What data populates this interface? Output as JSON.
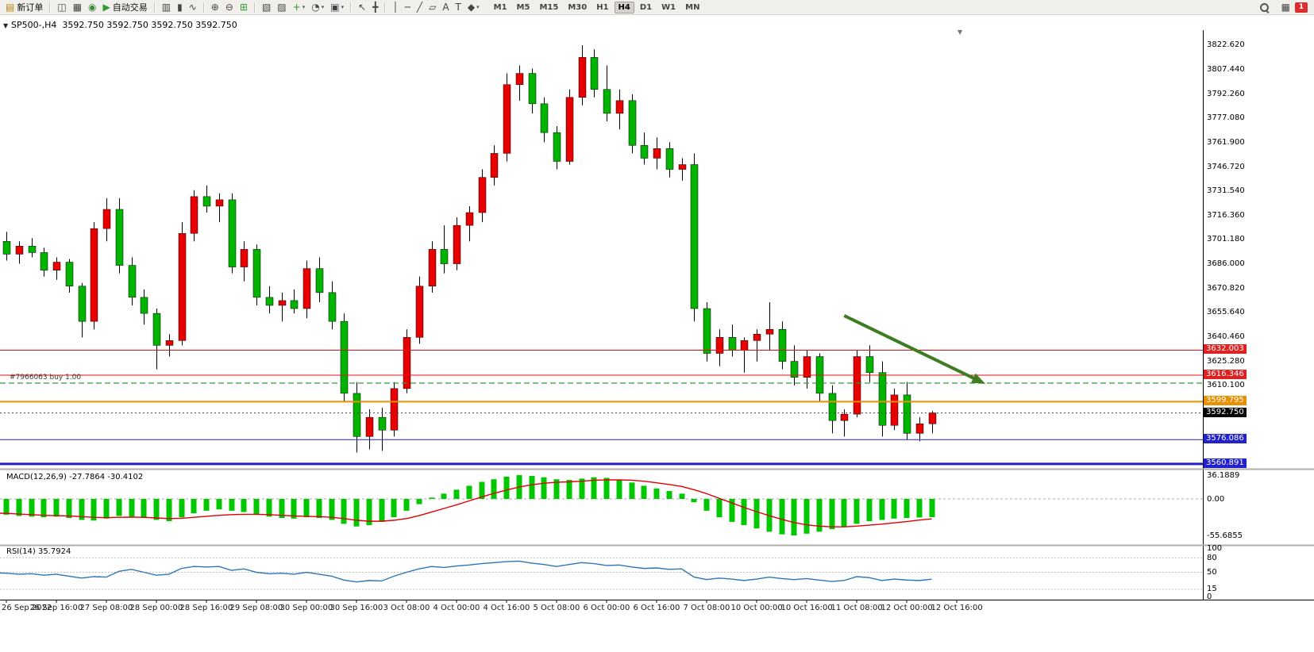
{
  "window": {
    "toolbar_bg": "#f1efec",
    "chart_bg": "#ffffff"
  },
  "icons": {
    "shift_marker": "▼",
    "collapse_toggle": "▼"
  },
  "toolbar": {
    "groups": [
      [
        {
          "name": "new-order-button",
          "glyph": "▤",
          "glyph_color": "#b8860b",
          "label": "新订单"
        }
      ],
      [
        {
          "name": "chart-window-icon",
          "glyph": "◫"
        },
        {
          "name": "profiles-icon",
          "glyph": "▦"
        },
        {
          "name": "refresh-icon",
          "glyph": "◉",
          "glyph_color": "#3a8a3a"
        },
        {
          "name": "auto-trading-button",
          "glyph": "▶",
          "glyph_color": "#2e9e2e",
          "label": "自动交易"
        }
      ],
      [
        {
          "name": "bar-chart-icon",
          "glyph": "▥"
        },
        {
          "name": "candlestick-chart-icon",
          "glyph": "▮"
        },
        {
          "name": "line-chart-icon",
          "glyph": "∿"
        }
      ],
      [
        {
          "name": "zoom-in-icon",
          "glyph": "⊕"
        },
        {
          "name": "zoom-out-icon",
          "glyph": "⊖"
        },
        {
          "name": "tile-windows-icon",
          "glyph": "⊞",
          "glyph_color": "#2e9e2e"
        }
      ],
      [
        {
          "name": "arrange-windows-icon",
          "glyph": "▧"
        },
        {
          "name": "cascade-windows-icon",
          "glyph": "▨"
        },
        {
          "name": "add-indicator-button",
          "glyph": "+",
          "glyph_color": "#2e9e2e",
          "caret": true
        },
        {
          "name": "period-button",
          "glyph": "◔",
          "caret": true
        },
        {
          "name": "template-button",
          "glyph": "▣",
          "caret": true
        }
      ],
      [
        {
          "name": "cursor-icon",
          "glyph": "↖"
        },
        {
          "name": "crosshair-icon",
          "glyph": "╋"
        }
      ],
      [
        {
          "name": "vertical-line-icon",
          "glyph": "│"
        },
        {
          "name": "horizontal-line-icon",
          "glyph": "─"
        },
        {
          "name": "trendline-icon",
          "glyph": "╱"
        },
        {
          "name": "channel-icon",
          "glyph": "▱"
        },
        {
          "name": "text-tool-icon",
          "glyph": "A"
        },
        {
          "name": "text-label-icon",
          "glyph": "T"
        },
        {
          "name": "shapes-button",
          "glyph": "◆",
          "caret": true
        }
      ]
    ],
    "timeframes": [
      "M1",
      "M5",
      "M15",
      "M30",
      "H1",
      "H4",
      "D1",
      "W1",
      "MN"
    ],
    "active_timeframe": "H4",
    "right_icons": [
      {
        "name": "search-icon",
        "type": "magnifier"
      },
      {
        "name": "community-icon",
        "glyph": "▦"
      }
    ],
    "notification_badge": "1"
  },
  "chart_header": {
    "title": "SP500-,H4",
    "ohlc": "3592.750 3592.750 3592.750 3592.750"
  },
  "price_axis": {
    "labels": [
      "3822.620",
      "3807.440",
      "3792.260",
      "3777.080",
      "3761.900",
      "3746.720",
      "3731.540",
      "3716.360",
      "3701.180",
      "3686.000",
      "3670.820",
      "3655.640",
      "3640.460",
      "3625.280",
      "3610.100"
    ]
  },
  "position_line": {
    "label": "#7966063 buy 1.00",
    "price": 3611.4,
    "color": "#2f9e2f"
  },
  "levels": [
    {
      "name": "resistance-1",
      "price": 3632.003,
      "color": "#e01010",
      "style": "solid",
      "width": 1,
      "badge": "3632.003",
      "badge_bg": "#dd2222"
    },
    {
      "name": "resistance-2",
      "price": 3616.346,
      "color": "#e01010",
      "style": "solid",
      "width": 1,
      "badge": "3616.346",
      "badge_bg": "#dd2222"
    },
    {
      "name": "pivot-orange",
      "price": 3599.795,
      "color": "#e89000",
      "style": "solid",
      "width": 2,
      "badge": "3599.795",
      "badge_bg": "#e89000"
    },
    {
      "name": "current-price-line",
      "price": 3592.75,
      "color": "#444444",
      "style": "dotted",
      "width": 1,
      "badge": "3592.750",
      "badge_bg": "#000000"
    },
    {
      "name": "support-blue-1",
      "price": 3576.086,
      "color": "#2020cc",
      "style": "solid",
      "width": 1,
      "badge": "3576.086",
      "badge_bg": "#2222cc"
    },
    {
      "name": "support-blue-2",
      "price": 3560.891,
      "color": "#2020cc",
      "style": "solid",
      "width": 3,
      "badge": "3560.891",
      "badge_bg": "#2222cc"
    }
  ],
  "annotations": {
    "trend_arrow": {
      "from_bar": 69,
      "from_price": 3653.6,
      "to_bar": 80.3,
      "to_price": 3610.9,
      "color": "#3f7d22"
    }
  },
  "chart_data": {
    "type": "candlestick",
    "symbol": "SP500-",
    "timeframe": "H4",
    "up_color": "#e80000",
    "down_color": "#00b400",
    "wick_color": "#000000",
    "ylim": [
      3558.35,
      3832.04
    ],
    "candles": [
      [
        3702,
        3708,
        3694,
        3698
      ],
      [
        3698,
        3703,
        3692,
        3700
      ],
      [
        3700,
        3706,
        3688,
        3692
      ],
      [
        3692,
        3700,
        3686,
        3697
      ],
      [
        3697,
        3702,
        3690,
        3693
      ],
      [
        3693,
        3696,
        3678,
        3682
      ],
      [
        3682,
        3690,
        3676,
        3687
      ],
      [
        3687,
        3689,
        3668,
        3672
      ],
      [
        3672,
        3674,
        3640,
        3650
      ],
      [
        3650,
        3712,
        3645,
        3708
      ],
      [
        3708,
        3727,
        3700,
        3720
      ],
      [
        3720,
        3727,
        3680,
        3685
      ],
      [
        3685,
        3690,
        3660,
        3665
      ],
      [
        3665,
        3670,
        3648,
        3655
      ],
      [
        3655,
        3658,
        3620,
        3635
      ],
      [
        3635,
        3642,
        3628,
        3638
      ],
      [
        3638,
        3712,
        3635,
        3705
      ],
      [
        3705,
        3732,
        3700,
        3728
      ],
      [
        3728,
        3735,
        3718,
        3722
      ],
      [
        3722,
        3730,
        3712,
        3726
      ],
      [
        3726,
        3730,
        3680,
        3684
      ],
      [
        3684,
        3700,
        3675,
        3695
      ],
      [
        3695,
        3698,
        3660,
        3665
      ],
      [
        3665,
        3672,
        3655,
        3660
      ],
      [
        3660,
        3668,
        3650,
        3663
      ],
      [
        3663,
        3670,
        3655,
        3658
      ],
      [
        3658,
        3688,
        3652,
        3683
      ],
      [
        3683,
        3690,
        3662,
        3668
      ],
      [
        3668,
        3675,
        3645,
        3650
      ],
      [
        3650,
        3655,
        3600,
        3605
      ],
      [
        3605,
        3612,
        3568,
        3578
      ],
      [
        3578,
        3595,
        3570,
        3590
      ],
      [
        3590,
        3596,
        3569,
        3582
      ],
      [
        3582,
        3612,
        3578,
        3608
      ],
      [
        3608,
        3645,
        3605,
        3640
      ],
      [
        3640,
        3678,
        3636,
        3672
      ],
      [
        3672,
        3700,
        3668,
        3695
      ],
      [
        3695,
        3710,
        3680,
        3686
      ],
      [
        3686,
        3715,
        3682,
        3710
      ],
      [
        3710,
        3722,
        3700,
        3718
      ],
      [
        3718,
        3745,
        3712,
        3740
      ],
      [
        3740,
        3760,
        3735,
        3755
      ],
      [
        3755,
        3805,
        3750,
        3798
      ],
      [
        3798,
        3810,
        3788,
        3805
      ],
      [
        3805,
        3808,
        3780,
        3786
      ],
      [
        3786,
        3790,
        3762,
        3768
      ],
      [
        3768,
        3772,
        3745,
        3750
      ],
      [
        3750,
        3795,
        3748,
        3790
      ],
      [
        3790,
        3822.6,
        3785,
        3815
      ],
      [
        3815,
        3820,
        3790,
        3795
      ],
      [
        3795,
        3810,
        3775,
        3780
      ],
      [
        3780,
        3795,
        3770,
        3788
      ],
      [
        3788,
        3792,
        3755,
        3760
      ],
      [
        3760,
        3768,
        3748,
        3752
      ],
      [
        3752,
        3765,
        3745,
        3758
      ],
      [
        3758,
        3762,
        3740,
        3745
      ],
      [
        3745,
        3752,
        3738,
        3748
      ],
      [
        3748,
        3755,
        3650,
        3658
      ],
      [
        3658,
        3662,
        3625,
        3630
      ],
      [
        3630,
        3645,
        3622,
        3640
      ],
      [
        3640,
        3648,
        3628,
        3632
      ],
      [
        3632,
        3640,
        3618,
        3638
      ],
      [
        3638,
        3645,
        3625,
        3642
      ],
      [
        3642,
        3662,
        3632,
        3645
      ],
      [
        3645,
        3650,
        3620,
        3625
      ],
      [
        3625,
        3635,
        3610,
        3615
      ],
      [
        3615,
        3632,
        3608,
        3628
      ],
      [
        3628,
        3630,
        3600,
        3605
      ],
      [
        3605,
        3610,
        3580,
        3588
      ],
      [
        3588,
        3595,
        3578,
        3592
      ],
      [
        3592,
        3632,
        3590,
        3628
      ],
      [
        3628,
        3635,
        3612,
        3618
      ],
      [
        3618,
        3625,
        3578,
        3585
      ],
      [
        3585,
        3608,
        3582,
        3604
      ],
      [
        3604,
        3612,
        3576,
        3580
      ],
      [
        3580,
        3590,
        3575,
        3586
      ],
      [
        3586,
        3594,
        3580,
        3592.75
      ]
    ]
  },
  "macd": {
    "label_text": "MACD(12,26,9) -27.7864 -30.4102",
    "name": "MACD(12,26,9)",
    "values": [
      -27.7864,
      -30.4102
    ],
    "axis": [
      "36.1889",
      "0.00",
      "-55.6855"
    ],
    "histogram_color": "#00c800",
    "signal_color": "#e00000",
    "histogram": [
      -22,
      -23,
      -24,
      -26,
      -27,
      -28,
      -27,
      -29,
      -32,
      -33,
      -30,
      -26,
      -27,
      -29,
      -32,
      -34,
      -28,
      -22,
      -18,
      -16,
      -18,
      -20,
      -24,
      -27,
      -29,
      -30,
      -28,
      -29,
      -32,
      -38,
      -42,
      -40,
      -35,
      -28,
      -18,
      -8,
      2,
      8,
      14,
      20,
      26,
      30,
      34,
      36.19,
      35,
      33,
      30,
      29,
      31,
      33,
      32,
      29,
      25,
      20,
      16,
      12,
      8,
      -5,
      -18,
      -28,
      -35,
      -40,
      -45,
      -50,
      -54,
      -55.69,
      -53,
      -50,
      -46,
      -42,
      -38,
      -34,
      -32,
      -30,
      -29,
      -28.3,
      -27.79
    ],
    "signal": [
      -21,
      -21.5,
      -22,
      -23,
      -24,
      -25,
      -25.5,
      -26,
      -27,
      -28,
      -28.5,
      -28,
      -27.8,
      -28,
      -29,
      -30,
      -29.5,
      -28,
      -26.5,
      -25,
      -24,
      -23.5,
      -23.5,
      -24,
      -25,
      -26,
      -26.5,
      -27,
      -28,
      -30,
      -32.5,
      -34,
      -34,
      -32.5,
      -30,
      -25.5,
      -20,
      -14.5,
      -9,
      -3,
      3,
      8.5,
      13.5,
      18,
      21.5,
      24,
      25.5,
      26,
      27,
      28.5,
      29,
      29,
      28.5,
      27,
      24.5,
      22,
      19,
      14,
      8,
      1,
      -6,
      -13,
      -19.5,
      -25.5,
      -31,
      -36,
      -39.5,
      -41.5,
      -42.5,
      -42.5,
      -41.5,
      -40,
      -38.5,
      -36.5,
      -34.5,
      -32.3,
      -30.41
    ]
  },
  "rsi": {
    "label_text": "RSI(14) 35.7924",
    "name": "RSI(14)",
    "value": 35.7924,
    "axis": [
      "100",
      "80",
      "50",
      "15",
      "0"
    ],
    "level_lines": [
      80,
      50,
      15
    ],
    "line_color": "#2e75b6",
    "values": [
      50,
      49,
      48,
      46,
      47,
      44,
      46,
      42,
      38,
      41,
      40,
      52,
      56,
      50,
      44,
      46,
      58,
      62,
      61,
      62,
      54,
      57,
      50,
      47,
      48,
      46,
      50,
      46,
      42,
      34,
      30,
      33,
      32,
      42,
      50,
      57,
      62,
      60,
      63,
      65,
      68,
      70,
      72,
      73,
      69,
      66,
      62,
      66,
      70,
      68,
      64,
      65,
      61,
      58,
      59,
      56,
      57,
      40,
      35,
      38,
      36,
      33,
      36,
      40,
      37,
      35,
      37,
      34,
      31,
      33,
      41,
      39,
      33,
      36,
      34,
      33,
      35.79
    ]
  },
  "time_axis": {
    "labels": [
      "26 Sep 2022",
      "26 Sep 16:00",
      "27 Sep 08:00",
      "28 Sep 00:00",
      "28 Sep 16:00",
      "29 Sep 08:00",
      "30 Sep 00:00",
      "30 Sep 16:00",
      "3 Oct 08:00",
      "4 Oct 00:00",
      "4 Oct 16:00",
      "5 Oct 08:00",
      "6 Oct 00:00",
      "6 Oct 16:00",
      "7 Oct 08:00",
      "10 Oct 00:00",
      "10 Oct 16:00",
      "11 Oct 08:00",
      "12 Oct 00:00",
      "12 Oct 16:00"
    ]
  }
}
